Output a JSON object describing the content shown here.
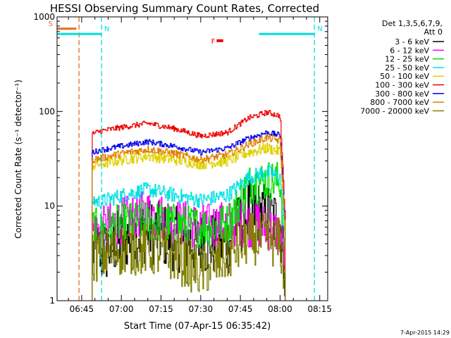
{
  "chart_data": {
    "type": "line",
    "title": "HESSI Observing Summary Count Rates, Corrected",
    "xlabel": "Start Time (07-Apr-15 06:35:42)",
    "ylabel": "Corrected Count Rate (s⁻¹ detector⁻¹)",
    "yscale": "log",
    "xlim": [
      "06:35:42",
      "08:18:00"
    ],
    "ylim": [
      1,
      1000
    ],
    "x_ticks": [
      "06:45",
      "07:00",
      "07:15",
      "07:30",
      "07:45",
      "08:00",
      "08:15"
    ],
    "y_ticks": [
      "1",
      "10",
      "100",
      "1000"
    ],
    "legend_header": [
      "Det 1,3,5,6,7,9,",
      "Att 0"
    ],
    "legend_position": "right",
    "timestamp": "7-Apr-2015 14:29",
    "grid": false,
    "flags": [
      {
        "label": "S",
        "color": "#e07020",
        "start": "06:35:42",
        "end": "06:43:00",
        "y": 750
      },
      {
        "label": "N",
        "color": "#00e0e0",
        "start": "06:35:42",
        "end": "06:52:30",
        "y": 660
      },
      {
        "label": "N",
        "color": "#00e0e0",
        "start": "07:52:00",
        "end": "08:13:00",
        "y": 660
      },
      {
        "label": "F",
        "color": "#ee0000",
        "start": "07:36:00",
        "end": "07:38:30",
        "y": 560
      }
    ],
    "vlines": [
      {
        "time": "06:44:00",
        "color": "#e07020"
      },
      {
        "time": "06:52:30",
        "color": "#00e0e0"
      },
      {
        "time": "08:13:00",
        "color": "#00e0e0"
      }
    ],
    "series": [
      {
        "name": "3 - 6 keV",
        "color": "#000000",
        "x": [
          "06:49",
          "06:52",
          "07:00",
          "07:10",
          "07:20",
          "07:30",
          "07:40",
          "07:48",
          "07:55",
          "08:00",
          "08:02"
        ],
        "y": [
          3.5,
          3.0,
          4.5,
          5.5,
          4.5,
          4.0,
          4.0,
          9.0,
          8.0,
          6.5,
          2.0
        ]
      },
      {
        "name": "6 - 12 keV",
        "color": "#ff00ff",
        "x": [
          "06:49",
          "06:52",
          "07:00",
          "07:10",
          "07:20",
          "07:30",
          "07:40",
          "07:48",
          "07:55",
          "08:00",
          "08:02"
        ],
        "y": [
          5.5,
          5.5,
          7.0,
          8.5,
          7.0,
          6.0,
          6.5,
          6.5,
          6.0,
          5.0,
          2.5
        ]
      },
      {
        "name": "12 - 25 keV",
        "color": "#00e000",
        "x": [
          "06:49",
          "06:52",
          "07:00",
          "07:10",
          "07:20",
          "07:30",
          "07:40",
          "07:48",
          "07:55",
          "08:00",
          "08:02"
        ],
        "y": [
          6.0,
          5.5,
          6.5,
          7.0,
          6.5,
          6.0,
          6.5,
          17.0,
          19.0,
          18.0,
          3.0
        ]
      },
      {
        "name": "25 - 50 keV",
        "color": "#00e0e0",
        "x": [
          "06:49",
          "06:52",
          "07:00",
          "07:10",
          "07:20",
          "07:30",
          "07:40",
          "07:48",
          "07:55",
          "08:00",
          "08:02"
        ],
        "y": [
          11.5,
          11.0,
          13.0,
          15.0,
          13.0,
          11.5,
          13.0,
          20.0,
          23.0,
          20.0,
          4.0
        ]
      },
      {
        "name": "50 - 100 keV",
        "color": "#e0d000",
        "x": [
          "06:49",
          "06:52",
          "07:00",
          "07:10",
          "07:20",
          "07:30",
          "07:40",
          "07:48",
          "07:55",
          "08:00",
          "08:02"
        ],
        "y": [
          27.0,
          28.0,
          31.0,
          34.0,
          31.0,
          28.0,
          30.0,
          37.0,
          41.0,
          38.0,
          5.0
        ]
      },
      {
        "name": "100 - 300 keV",
        "color": "#ee0000",
        "x": [
          "06:49",
          "06:52",
          "07:00",
          "07:10",
          "07:20",
          "07:30",
          "07:40",
          "07:48",
          "07:55",
          "08:00",
          "08:02"
        ],
        "y": [
          58.0,
          62.0,
          68.0,
          75.0,
          66.0,
          55.0,
          60.0,
          85.0,
          98.0,
          90.0,
          6.0
        ]
      },
      {
        "name": "300 - 800 keV",
        "color": "#0000ee",
        "x": [
          "06:49",
          "06:52",
          "07:00",
          "07:10",
          "07:20",
          "07:30",
          "07:40",
          "07:48",
          "07:55",
          "08:00",
          "08:02"
        ],
        "y": [
          37.0,
          39.0,
          43.0,
          48.0,
          43.0,
          37.0,
          41.0,
          52.0,
          60.0,
          56.0,
          5.5
        ]
      },
      {
        "name": "800 - 7000 keV",
        "color": "#e08000",
        "x": [
          "06:49",
          "06:52",
          "07:00",
          "07:10",
          "07:20",
          "07:30",
          "07:40",
          "07:48",
          "07:55",
          "08:00",
          "08:02"
        ],
        "y": [
          31.0,
          32.0,
          36.0,
          40.0,
          36.0,
          31.0,
          35.0,
          45.0,
          53.0,
          49.0,
          5.0
        ]
      },
      {
        "name": "7000 - 20000 keV",
        "color": "#808000",
        "x": [
          "06:49",
          "06:52",
          "07:00",
          "07:10",
          "07:20",
          "07:30",
          "07:40",
          "07:48",
          "07:55",
          "08:00",
          "08:02"
        ],
        "y": [
          3.0,
          3.0,
          3.5,
          3.5,
          3.0,
          2.0,
          3.0,
          4.5,
          4.5,
          4.0,
          1.5
        ]
      }
    ]
  }
}
